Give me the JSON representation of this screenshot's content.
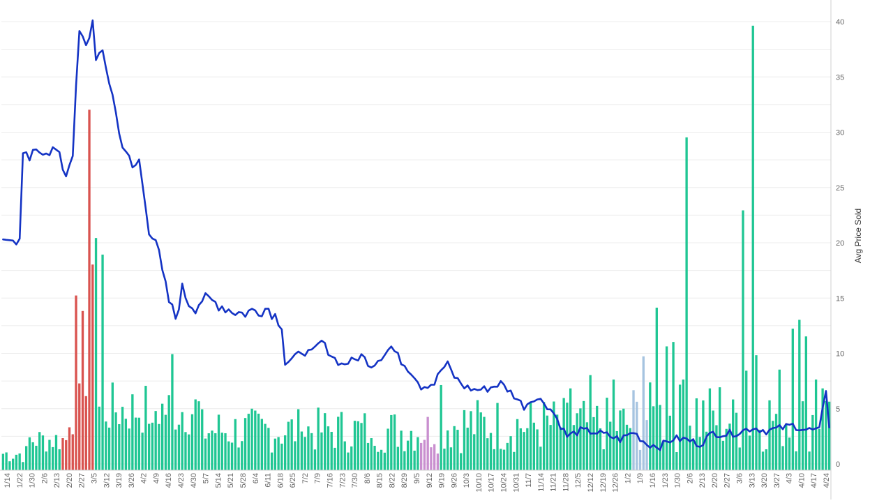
{
  "chart_data": {
    "type": "bar+line",
    "ylabel": "Avg Price Sold",
    "ylim": [
      0,
      41
    ],
    "yticks": [
      0,
      5,
      10,
      15,
      20,
      25,
      30,
      35,
      40
    ],
    "grid": true,
    "x_ticks": [
      "1/14",
      "1/22",
      "1/30",
      "2/6",
      "2/13",
      "2/20",
      "2/27",
      "3/5",
      "3/12",
      "3/19",
      "3/26",
      "4/2",
      "4/9",
      "4/16",
      "4/23",
      "4/30",
      "5/7",
      "5/14",
      "5/21",
      "5/28",
      "6/4",
      "6/11",
      "6/18",
      "6/25",
      "7/2",
      "7/9",
      "7/16",
      "7/23",
      "7/30",
      "8/6",
      "8/15",
      "8/22",
      "8/29",
      "9/5",
      "9/12",
      "9/19",
      "9/26",
      "10/3",
      "10/10",
      "10/17",
      "10/24",
      "10/31",
      "11/7",
      "11/14",
      "11/21",
      "11/28",
      "12/5",
      "12/12",
      "12/19",
      "12/26",
      "1/2",
      "1/9",
      "1/16",
      "1/23",
      "1/30",
      "2/6",
      "2/13",
      "2/20",
      "2/27",
      "3/6",
      "3/13",
      "3/20",
      "3/27",
      "4/3",
      "4/10",
      "4/17",
      "4/24"
    ],
    "series": [
      {
        "mark": "bar",
        "color_default": "#1fc693"
      },
      {
        "mark": "line",
        "color": "#1433c4"
      }
    ],
    "bar_colors": {
      "teal": "#1fc693",
      "red": "#d9534f",
      "pink": "#c98fcf",
      "blue": "#a6c4e0"
    },
    "line_control_points": [
      [
        0,
        20.3
      ],
      [
        3,
        20.2
      ],
      [
        5,
        20.2
      ],
      [
        6,
        27.6
      ],
      [
        8,
        27.6
      ],
      [
        12,
        28.5
      ],
      [
        16,
        28.3
      ],
      [
        19,
        26.2
      ],
      [
        21,
        28.3
      ],
      [
        23,
        39.0
      ],
      [
        25,
        37.6
      ],
      [
        27,
        40.0
      ],
      [
        28,
        37.0
      ],
      [
        30,
        36.8
      ],
      [
        32,
        34.6
      ],
      [
        33,
        33.6
      ],
      [
        35,
        29.8
      ],
      [
        37,
        28.4
      ],
      [
        39,
        26.5
      ],
      [
        41,
        27.5
      ],
      [
        42,
        25.2
      ],
      [
        44,
        21.3
      ],
      [
        46,
        20.4
      ],
      [
        48,
        17.2
      ],
      [
        50,
        14.7
      ],
      [
        52,
        13.2
      ],
      [
        54,
        15.8
      ],
      [
        56,
        14.6
      ],
      [
        58,
        14.2
      ],
      [
        60,
        14.9
      ],
      [
        64,
        14.6
      ],
      [
        68,
        14.0
      ],
      [
        72,
        13.6
      ],
      [
        76,
        13.9
      ],
      [
        80,
        14.1
      ],
      [
        84,
        12.7
      ],
      [
        85,
        9.1
      ],
      [
        88,
        9.6
      ],
      [
        90,
        10.2
      ],
      [
        93,
        10.0
      ],
      [
        96,
        11.1
      ],
      [
        98,
        10.2
      ],
      [
        100,
        9.5
      ],
      [
        102,
        9.0
      ],
      [
        106,
        9.4
      ],
      [
        108,
        9.8
      ],
      [
        111,
        8.9
      ],
      [
        114,
        9.7
      ],
      [
        117,
        10.6
      ],
      [
        120,
        9.3
      ],
      [
        124,
        8.0
      ],
      [
        126,
        7.0
      ],
      [
        130,
        7.3
      ],
      [
        132,
        8.5
      ],
      [
        134,
        9.0
      ],
      [
        136,
        7.9
      ],
      [
        139,
        7.0
      ],
      [
        142,
        6.7
      ],
      [
        146,
        6.8
      ],
      [
        150,
        7.3
      ],
      [
        154,
        6.2
      ],
      [
        157,
        5.2
      ],
      [
        160,
        6.0
      ],
      [
        163,
        5.6
      ],
      [
        166,
        4.6
      ],
      [
        168,
        3.5
      ],
      [
        170,
        2.5
      ],
      [
        174,
        3.0
      ],
      [
        178,
        2.9
      ],
      [
        182,
        2.6
      ],
      [
        186,
        2.2
      ],
      [
        190,
        2.9
      ],
      [
        194,
        1.8
      ],
      [
        198,
        1.6
      ],
      [
        202,
        2.3
      ],
      [
        206,
        2.2
      ],
      [
        210,
        1.8
      ],
      [
        214,
        2.8
      ],
      [
        218,
        2.7
      ],
      [
        222,
        2.9
      ],
      [
        226,
        3.3
      ],
      [
        230,
        3.0
      ],
      [
        234,
        3.2
      ],
      [
        238,
        3.5
      ],
      [
        242,
        3.1
      ],
      [
        246,
        3.0
      ],
      [
        248,
        6.6
      ],
      [
        249,
        3.3
      ]
    ],
    "bar_spikes": [
      [
        25,
        6.7
      ],
      [
        27,
        18.6
      ],
      [
        45,
        4.3
      ],
      [
        51,
        10.5
      ],
      [
        90,
        3.5
      ],
      [
        111,
        2.9
      ],
      [
        132,
        7.7
      ],
      [
        158,
        3.8
      ],
      [
        160,
        4.3
      ],
      [
        171,
        7.4
      ],
      [
        177,
        8.6
      ],
      [
        184,
        8.2
      ],
      [
        193,
        10.3
      ],
      [
        197,
        14.7
      ],
      [
        200,
        11.2
      ],
      [
        202,
        11.6
      ],
      [
        205,
        8.2
      ],
      [
        206,
        30.1
      ],
      [
        209,
        6.5
      ],
      [
        216,
        7.5
      ],
      [
        220,
        6.4
      ],
      [
        223,
        23.5
      ],
      [
        224,
        9.0
      ],
      [
        226,
        40.2
      ],
      [
        227,
        10.4
      ],
      [
        234,
        9.1
      ],
      [
        238,
        12.8
      ],
      [
        240,
        13.6
      ],
      [
        242,
        12.1
      ],
      [
        245,
        8.2
      ],
      [
        247,
        7.4
      ],
      [
        249,
        6.2
      ]
    ]
  }
}
